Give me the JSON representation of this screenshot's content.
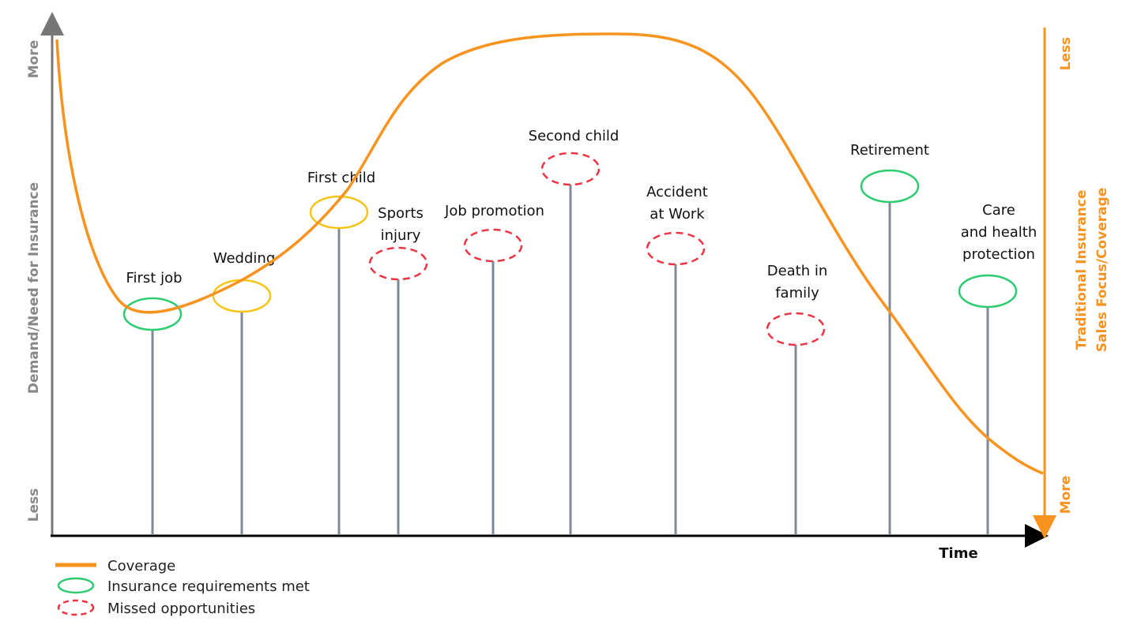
{
  "left_axis": {
    "title": "Demand/Need for Insurance",
    "top": "More",
    "bottom": "Less"
  },
  "right_axis": {
    "title_line1": "Traditional Insurance",
    "title_line2": "Sales Focus/Coverage",
    "top": "Less",
    "bottom": "More",
    "color": "#F7931E"
  },
  "x_axis": {
    "title": "Time"
  },
  "colors": {
    "coverage": "#F7931E",
    "met": "#2ECC71",
    "partial": "#F5C518",
    "missed": "#EE3344",
    "stem": "#7F8A96"
  },
  "events": [
    {
      "lines": [
        "First job"
      ],
      "status": "met"
    },
    {
      "lines": [
        "Wedding"
      ],
      "status": "partial"
    },
    {
      "lines": [
        "First child"
      ],
      "status": "partial"
    },
    {
      "lines": [
        "Sports",
        "injury"
      ],
      "status": "missed"
    },
    {
      "lines": [
        "Job promotion"
      ],
      "status": "missed"
    },
    {
      "lines": [
        "Second child"
      ],
      "status": "missed"
    },
    {
      "lines": [
        "Accident",
        "at Work"
      ],
      "status": "missed"
    },
    {
      "lines": [
        "Death in",
        "family"
      ],
      "status": "missed"
    },
    {
      "lines": [
        "Retirement"
      ],
      "status": "met"
    },
    {
      "lines": [
        "Care",
        "and health",
        "protection"
      ],
      "status": "met"
    }
  ],
  "legend": {
    "coverage": "Coverage",
    "met": "Insurance requirements met",
    "missed": "Missed opportunities"
  }
}
